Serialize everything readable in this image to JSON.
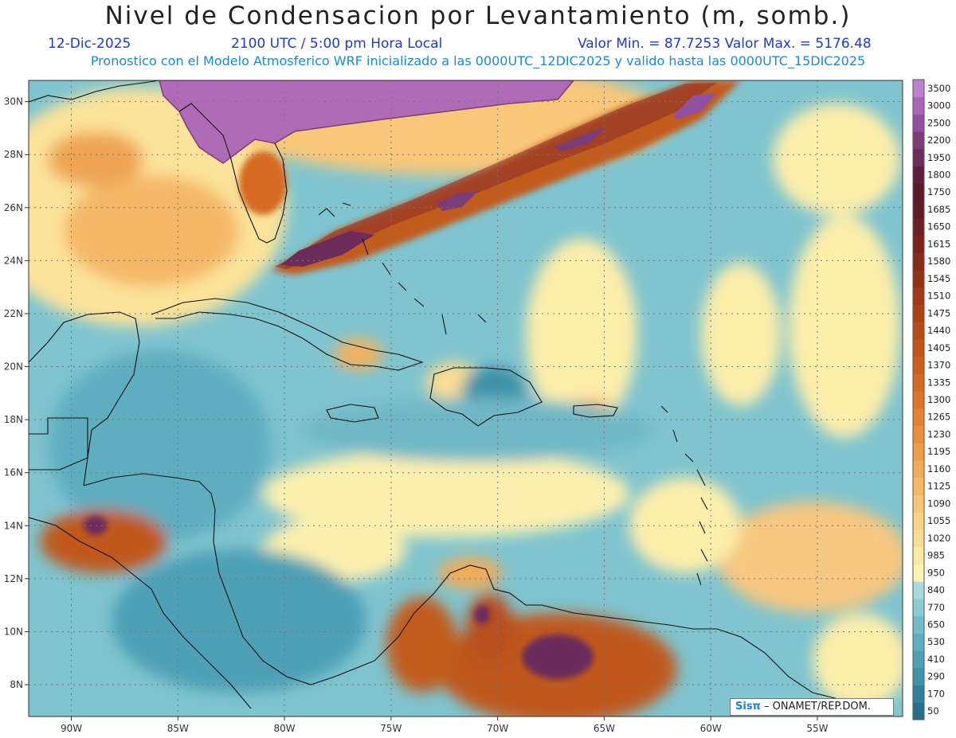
{
  "title": "Nivel de Condensacion por Levantamiento (m, somb.)",
  "date_label": "12-Dic-2025",
  "time_label": "2100 UTC / 5:00 pm Hora Local",
  "minmax_label": "Valor Min. = 87.7253   Valor Max. = 5176.48",
  "model_label": "Pronostico con el Modelo Atmosferico WRF inicializado a las 0000UTC_12DIC2025 y valido hasta las  0000UTC_15DIC2025",
  "footer": {
    "logo": "Sisπ",
    "text": " – ONAMET/REP.DOM."
  },
  "chart_data": {
    "type": "heatmap",
    "x_axis": {
      "min": -92,
      "max": -51,
      "ticks": [
        -90,
        -85,
        -80,
        -75,
        -70,
        -65,
        -60,
        -55
      ],
      "tick_labels": [
        "90W",
        "85W",
        "80W",
        "75W",
        "70W",
        "65W",
        "60W",
        "55W"
      ]
    },
    "y_axis": {
      "min": 6.8,
      "max": 30.8,
      "ticks": [
        8,
        10,
        12,
        14,
        16,
        18,
        20,
        22,
        24,
        26,
        28,
        30
      ],
      "tick_labels": [
        "8N",
        "10N",
        "12N",
        "14N",
        "16N",
        "18N",
        "20N",
        "22N",
        "24N",
        "26N",
        "28N",
        "30N"
      ]
    },
    "grid": true,
    "colorbar": {
      "position": "right",
      "levels": [
        "50",
        "170",
        "290",
        "410",
        "530",
        "650",
        "770",
        "840",
        "950",
        "985",
        "1020",
        "1055",
        "1090",
        "1125",
        "1160",
        "1195",
        "1230",
        "1265",
        "1300",
        "1335",
        "1370",
        "1405",
        "1440",
        "1475",
        "1510",
        "1545",
        "1580",
        "1615",
        "1650",
        "1685",
        "1750",
        "1800",
        "1950",
        "2200",
        "2500",
        "3000",
        "3500"
      ],
      "colors": [
        "#256f8a",
        "#2f8199",
        "#3e92a8",
        "#4da0b5",
        "#5eaec0",
        "#73bcca",
        "#8acbd4",
        "#a6dbe0",
        "#fdf4b0",
        "#fce9a2",
        "#fbdd92",
        "#f9d283",
        "#f7c674",
        "#f5b964",
        "#f2ab56",
        "#ee9c48",
        "#ea8e3c",
        "#e48132",
        "#dd742a",
        "#d56922",
        "#cc5e1d",
        "#c25418",
        "#b74b16",
        "#ac4214",
        "#a03914",
        "#943116",
        "#882a19",
        "#7c241c",
        "#701f21",
        "#641a25",
        "#5a1a2c",
        "#5e1e3e",
        "#6b2c5b",
        "#7c3c78",
        "#9150a0",
        "#a965b8",
        "#c080d0"
      ]
    },
    "value_range": {
      "min": 87.7253,
      "max": 5176.48
    },
    "field_regions": [
      {
        "name": "cold-front-band",
        "level_min": 1265,
        "level_max": 2500
      },
      {
        "name": "florida-high",
        "level_min": 3500,
        "level_max": 5176
      },
      {
        "name": "venezuela-high",
        "level_min": 1405,
        "level_max": 2200
      },
      {
        "name": "honduras-high",
        "level_min": 1405,
        "level_max": 2200
      },
      {
        "name": "caribbean-moist",
        "level_min": 290,
        "level_max": 840
      },
      {
        "name": "atlantic-dry",
        "level_min": 950,
        "level_max": 1160
      }
    ]
  }
}
